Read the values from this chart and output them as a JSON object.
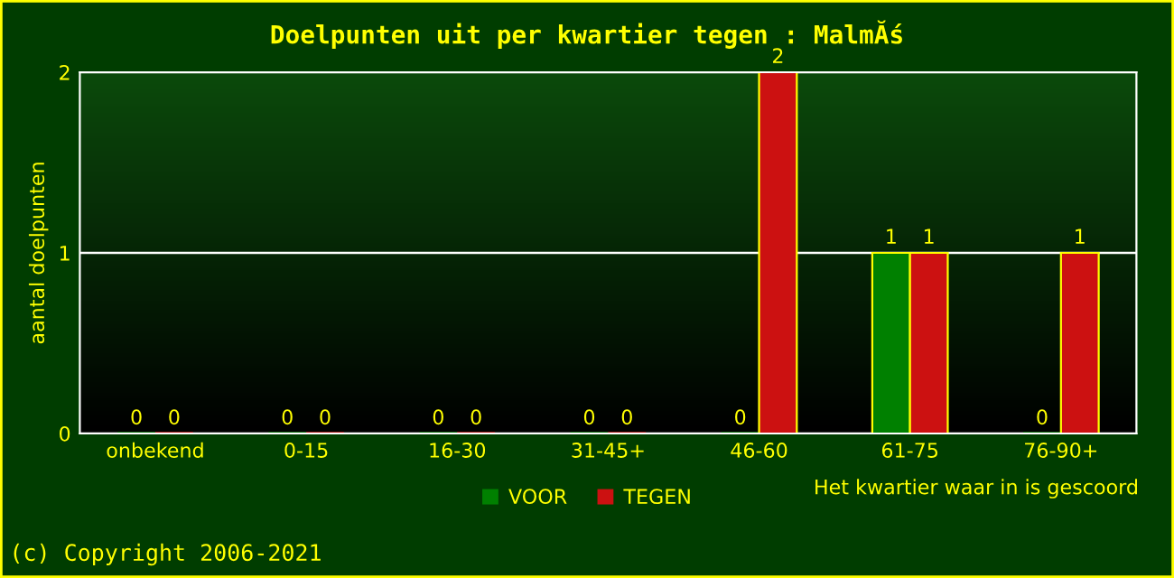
{
  "chart_data": {
    "type": "bar",
    "title": "Doelpunten uit per kwartier tegen : MalmĂś",
    "xlabel": "Het kwartier waar in is gescoord",
    "ylabel": "aantal doelpunten",
    "categories": [
      "onbekend",
      "0-15",
      "16-30",
      "31-45+",
      "46-60",
      "61-75",
      "76-90+"
    ],
    "series": [
      {
        "name": "VOOR",
        "color": "#008000",
        "values": [
          0,
          0,
          0,
          0,
          0,
          1,
          0
        ]
      },
      {
        "name": "TEGEN",
        "color": "#cc1111",
        "values": [
          0,
          0,
          0,
          0,
          2,
          1,
          1
        ]
      }
    ],
    "ylim": [
      0,
      2
    ],
    "yticks": [
      0,
      1,
      2
    ],
    "grid": "y",
    "legend": "bottom",
    "data_labels": true,
    "annotations": [
      "(c) Copyright 2006-2021"
    ]
  }
}
